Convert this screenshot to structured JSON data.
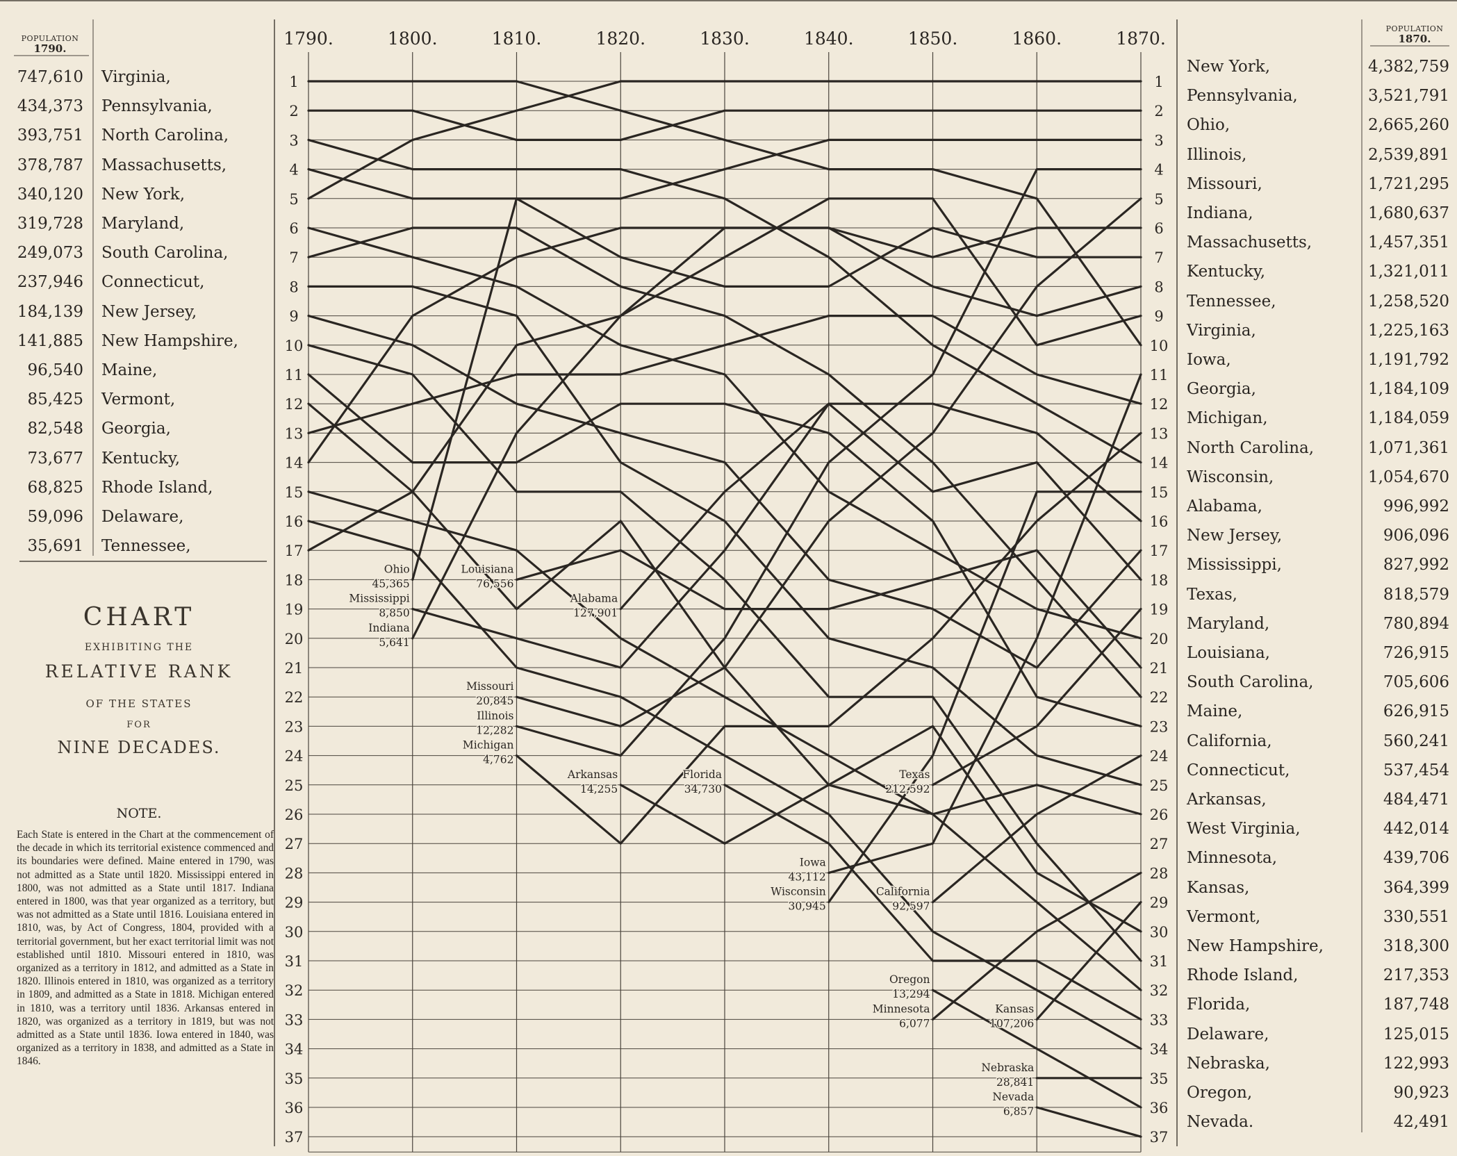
{
  "chart_data": {
    "type": "line",
    "title": "CHART",
    "subtitle_lines": [
      "EXHIBITING THE",
      "RELATIVE RANK",
      "OF THE STATES",
      "FOR",
      "NINE DECADES."
    ],
    "x": [
      "1790.",
      "1800.",
      "1810.",
      "1820.",
      "1830.",
      "1840.",
      "1850.",
      "1860.",
      "1870."
    ],
    "ranks": [
      "1",
      "2",
      "3",
      "4",
      "5",
      "6",
      "7",
      "8",
      "9",
      "10",
      "11",
      "12",
      "13",
      "14",
      "15",
      "16",
      "17",
      "18",
      "19",
      "20",
      "21",
      "22",
      "23",
      "24",
      "25",
      "26",
      "27",
      "28",
      "29",
      "30",
      "31",
      "32",
      "33",
      "34",
      "35",
      "36",
      "37"
    ],
    "ylim": [
      1,
      37
    ],
    "y_inverted": true,
    "grid": true,
    "series": [
      {
        "name": "Virginia",
        "ranks": [
          1,
          1,
          1,
          2,
          3,
          4,
          4,
          5,
          10
        ]
      },
      {
        "name": "Pennsylvania",
        "ranks": [
          2,
          2,
          3,
          3,
          2,
          2,
          2,
          2,
          2
        ]
      },
      {
        "name": "North Carolina",
        "ranks": [
          3,
          4,
          4,
          4,
          5,
          7,
          10,
          12,
          14
        ]
      },
      {
        "name": "Massachusetts",
        "ranks": [
          4,
          5,
          5,
          7,
          8,
          8,
          6,
          7,
          7
        ]
      },
      {
        "name": "New York",
        "ranks": [
          5,
          3,
          2,
          1,
          1,
          1,
          1,
          1,
          1
        ]
      },
      {
        "name": "Maryland",
        "ranks": [
          6,
          7,
          8,
          10,
          11,
          15,
          17,
          19,
          20
        ]
      },
      {
        "name": "South Carolina",
        "ranks": [
          7,
          6,
          6,
          8,
          9,
          11,
          14,
          18,
          22
        ]
      },
      {
        "name": "Connecticut",
        "ranks": [
          8,
          8,
          9,
          14,
          16,
          20,
          21,
          24,
          25
        ]
      },
      {
        "name": "New Jersey",
        "ranks": [
          9,
          10,
          12,
          13,
          14,
          18,
          19,
          21,
          17
        ]
      },
      {
        "name": "New Hampshire",
        "ranks": [
          10,
          11,
          15,
          15,
          18,
          22,
          22,
          27,
          31
        ]
      },
      {
        "name": "Maine",
        "ranks": [
          11,
          14,
          14,
          12,
          12,
          13,
          16,
          22,
          23
        ]
      },
      {
        "name": "Vermont",
        "ranks": [
          12,
          15,
          19,
          16,
          21,
          25,
          23,
          28,
          30
        ]
      },
      {
        "name": "Georgia",
        "ranks": [
          13,
          12,
          11,
          11,
          10,
          9,
          9,
          11,
          12
        ]
      },
      {
        "name": "Kentucky",
        "ranks": [
          14,
          9,
          7,
          6,
          6,
          6,
          8,
          9,
          8
        ]
      },
      {
        "name": "Rhode Island",
        "ranks": [
          15,
          16,
          17,
          20,
          22,
          24,
          26,
          29,
          32
        ]
      },
      {
        "name": "Delaware",
        "ranks": [
          16,
          17,
          21,
          22,
          24,
          26,
          30,
          32,
          34
        ]
      },
      {
        "name": "Tennessee",
        "ranks": [
          17,
          15,
          10,
          9,
          7,
          5,
          5,
          10,
          9
        ]
      },
      {
        "name": "Ohio",
        "ranks": [
          null,
          18,
          5,
          5,
          4,
          3,
          3,
          3,
          3
        ]
      },
      {
        "name": "Mississippi",
        "ranks": [
          null,
          19,
          20,
          21,
          17,
          12,
          15,
          14,
          18
        ]
      },
      {
        "name": "Indiana",
        "ranks": [
          null,
          20,
          13,
          9,
          6,
          6,
          7,
          6,
          6
        ]
      },
      {
        "name": "Louisiana",
        "ranks": [
          null,
          null,
          18,
          17,
          19,
          19,
          18,
          17,
          21
        ]
      },
      {
        "name": "Alabama",
        "ranks": [
          null,
          null,
          null,
          19,
          15,
          12,
          12,
          13,
          16
        ]
      },
      {
        "name": "Missouri",
        "ranks": [
          null,
          null,
          22,
          23,
          21,
          16,
          13,
          8,
          5
        ]
      },
      {
        "name": "Illinois",
        "ranks": [
          null,
          null,
          23,
          24,
          20,
          14,
          11,
          4,
          4
        ]
      },
      {
        "name": "Michigan",
        "ranks": [
          null,
          null,
          24,
          27,
          23,
          23,
          20,
          16,
          13
        ]
      },
      {
        "name": "Arkansas",
        "ranks": [
          null,
          null,
          null,
          25,
          27,
          25,
          26,
          25,
          26
        ]
      },
      {
        "name": "Florida",
        "ranks": [
          null,
          null,
          null,
          null,
          25,
          27,
          31,
          31,
          33
        ]
      },
      {
        "name": "Texas",
        "ranks": [
          null,
          null,
          null,
          null,
          null,
          null,
          25,
          23,
          19
        ]
      },
      {
        "name": "Iowa",
        "ranks": [
          null,
          null,
          null,
          null,
          null,
          28,
          27,
          20,
          11
        ]
      },
      {
        "name": "Wisconsin",
        "ranks": [
          null,
          null,
          null,
          null,
          null,
          29,
          24,
          15,
          15
        ]
      },
      {
        "name": "California",
        "ranks": [
          null,
          null,
          null,
          null,
          null,
          null,
          29,
          26,
          24
        ]
      },
      {
        "name": "Oregon",
        "ranks": [
          null,
          null,
          null,
          null,
          null,
          null,
          32,
          34,
          36
        ]
      },
      {
        "name": "Minnesota",
        "ranks": [
          null,
          null,
          null,
          null,
          null,
          null,
          33,
          30,
          28
        ]
      },
      {
        "name": "Kansas",
        "ranks": [
          null,
          null,
          null,
          null,
          null,
          null,
          null,
          33,
          29
        ]
      },
      {
        "name": "Nebraska",
        "ranks": [
          null,
          null,
          null,
          null,
          null,
          null,
          null,
          35,
          35
        ]
      },
      {
        "name": "Nevada",
        "ranks": [
          null,
          null,
          null,
          null,
          null,
          null,
          null,
          36,
          37
        ]
      },
      {
        "name": "West Virginia",
        "ranks": [
          null,
          null,
          null,
          null,
          null,
          null,
          null,
          null,
          27
        ]
      }
    ],
    "entry_labels": [
      {
        "col": 1,
        "rank": 18,
        "lines": [
          "Ohio",
          "45,365"
        ]
      },
      {
        "col": 1,
        "rank": 19,
        "lines": [
          "Mississippi",
          "8,850"
        ]
      },
      {
        "col": 1,
        "rank": 20,
        "lines": [
          "Indiana",
          "5,641"
        ]
      },
      {
        "col": 2,
        "rank": 18,
        "lines": [
          "Louisiana",
          "76,556"
        ]
      },
      {
        "col": 2,
        "rank": 22,
        "lines": [
          "Missouri",
          "20,845"
        ]
      },
      {
        "col": 2,
        "rank": 23,
        "lines": [
          "Illinois",
          "12,282"
        ]
      },
      {
        "col": 2,
        "rank": 24,
        "lines": [
          "Michigan",
          "4,762"
        ]
      },
      {
        "col": 3,
        "rank": 19,
        "lines": [
          "Alabama",
          "127,901"
        ]
      },
      {
        "col": 3,
        "rank": 25,
        "lines": [
          "Arkansas",
          "14,255"
        ]
      },
      {
        "col": 4,
        "rank": 25,
        "lines": [
          "Florida",
          "34,730"
        ]
      },
      {
        "col": 5,
        "rank": 28,
        "lines": [
          "Iowa",
          "43,112"
        ]
      },
      {
        "col": 5,
        "rank": 29,
        "lines": [
          "Wisconsin",
          "30,945"
        ]
      },
      {
        "col": 6,
        "rank": 25,
        "lines": [
          "Texas",
          "212,592"
        ]
      },
      {
        "col": 6,
        "rank": 29,
        "lines": [
          "California",
          "92,597"
        ]
      },
      {
        "col": 6,
        "rank": 32,
        "lines": [
          "Oregon",
          "13,294"
        ]
      },
      {
        "col": 6,
        "rank": 33,
        "lines": [
          "Minnesota",
          "6,077"
        ]
      },
      {
        "col": 7,
        "rank": 33,
        "lines": [
          "Kansas",
          "107,206"
        ]
      },
      {
        "col": 7,
        "rank": 35,
        "lines": [
          "Nebraska",
          "28,841"
        ]
      },
      {
        "col": 7,
        "rank": 36,
        "lines": [
          "Nevada",
          "6,857"
        ]
      }
    ]
  },
  "left_table": {
    "header_small": "POPULATION",
    "header_year": "1790.",
    "rows": [
      {
        "pop": "747,610",
        "state": "Virginia,"
      },
      {
        "pop": "434,373",
        "state": "Pennsylvania,"
      },
      {
        "pop": "393,751",
        "state": "North Carolina,"
      },
      {
        "pop": "378,787",
        "state": "Massachusetts,"
      },
      {
        "pop": "340,120",
        "state": "New York,"
      },
      {
        "pop": "319,728",
        "state": "Maryland,"
      },
      {
        "pop": "249,073",
        "state": "South Carolina,"
      },
      {
        "pop": "237,946",
        "state": "Connecticut,"
      },
      {
        "pop": "184,139",
        "state": "New Jersey,"
      },
      {
        "pop": "141,885",
        "state": "New Hampshire,"
      },
      {
        "pop": "96,540",
        "state": "Maine,"
      },
      {
        "pop": "85,425",
        "state": "Vermont,"
      },
      {
        "pop": "82,548",
        "state": "Georgia,"
      },
      {
        "pop": "73,677",
        "state": "Kentucky,"
      },
      {
        "pop": "68,825",
        "state": "Rhode Island,"
      },
      {
        "pop": "59,096",
        "state": "Delaware,"
      },
      {
        "pop": "35,691",
        "state": "Tennessee,"
      }
    ]
  },
  "right_table": {
    "header_small": "POPULATION",
    "header_year": "1870.",
    "rows": [
      {
        "rank": "1",
        "state": "New York,",
        "pop": "4,382,759"
      },
      {
        "rank": "2",
        "state": "Pennsylvania,",
        "pop": "3,521,791"
      },
      {
        "rank": "3",
        "state": "Ohio,",
        "pop": "2,665,260"
      },
      {
        "rank": "4",
        "state": "Illinois,",
        "pop": "2,539,891"
      },
      {
        "rank": "5",
        "state": "Missouri,",
        "pop": "1,721,295"
      },
      {
        "rank": "6",
        "state": "Indiana,",
        "pop": "1,680,637"
      },
      {
        "rank": "7",
        "state": "Massachusetts,",
        "pop": "1,457,351"
      },
      {
        "rank": "8",
        "state": "Kentucky,",
        "pop": "1,321,011"
      },
      {
        "rank": "9",
        "state": "Tennessee,",
        "pop": "1,258,520"
      },
      {
        "rank": "10",
        "state": "Virginia,",
        "pop": "1,225,163"
      },
      {
        "rank": "11",
        "state": "Iowa,",
        "pop": "1,191,792"
      },
      {
        "rank": "12",
        "state": "Georgia,",
        "pop": "1,184,109"
      },
      {
        "rank": "13",
        "state": "Michigan,",
        "pop": "1,184,059"
      },
      {
        "rank": "14",
        "state": "North Carolina,",
        "pop": "1,071,361"
      },
      {
        "rank": "15",
        "state": "Wisconsin,",
        "pop": "1,054,670"
      },
      {
        "rank": "16",
        "state": "Alabama,",
        "pop": "996,992"
      },
      {
        "rank": "17",
        "state": "New Jersey,",
        "pop": "906,096"
      },
      {
        "rank": "18",
        "state": "Mississippi,",
        "pop": "827,992"
      },
      {
        "rank": "19",
        "state": "Texas,",
        "pop": "818,579"
      },
      {
        "rank": "20",
        "state": "Maryland,",
        "pop": "780,894"
      },
      {
        "rank": "21",
        "state": "Louisiana,",
        "pop": "726,915"
      },
      {
        "rank": "22",
        "state": "South Carolina,",
        "pop": "705,606"
      },
      {
        "rank": "23",
        "state": "Maine,",
        "pop": "626,915"
      },
      {
        "rank": "24",
        "state": "California,",
        "pop": "560,241"
      },
      {
        "rank": "25",
        "state": "Connecticut,",
        "pop": "537,454"
      },
      {
        "rank": "26",
        "state": "Arkansas,",
        "pop": "484,471"
      },
      {
        "rank": "27",
        "state": "West Virginia,",
        "pop": "442,014"
      },
      {
        "rank": "28",
        "state": "Minnesota,",
        "pop": "439,706"
      },
      {
        "rank": "29",
        "state": "Kansas,",
        "pop": "364,399"
      },
      {
        "rank": "30",
        "state": "Vermont,",
        "pop": "330,551"
      },
      {
        "rank": "31",
        "state": "New Hampshire,",
        "pop": "318,300"
      },
      {
        "rank": "32",
        "state": "Rhode Island,",
        "pop": "217,353"
      },
      {
        "rank": "33",
        "state": "Florida,",
        "pop": "187,748"
      },
      {
        "rank": "34",
        "state": "Delaware,",
        "pop": "125,015"
      },
      {
        "rank": "35",
        "state": "Nebraska,",
        "pop": "122,993"
      },
      {
        "rank": "36",
        "state": "Oregon,",
        "pop": "90,923"
      },
      {
        "rank": "37",
        "state": "Nevada.",
        "pop": "42,491"
      }
    ]
  },
  "note": {
    "title": "NOTE.",
    "text": "Each State is entered in the Chart at the commencement of the decade in which its territorial existence commenced and its boundaries were defined. Maine entered in 1790, was not admitted as a State until 1820. Mississippi entered in 1800, was not admitted as a State until 1817. Indiana entered in 1800, was that year organized as a territory, but was not admitted as a State until 1816. Louisiana entered in 1810, was, by Act of Congress, 1804, provided with a territorial government, but her exact territorial limit was not established until 1810. Missouri entered in 1810, was organized as a territory in 1812, and admitted as a State in 1820. Illinois entered in 1810, was organized as a territory in 1809, and admitted as a State in 1818. Michigan entered in 1810, was a territory until 1836. Arkansas entered in 1820, was organized as a territory in 1819, but was not admitted as a State until 1836. Iowa entered in 1840, was organized as a territory in 1838, and admitted as a State in 1846."
  },
  "colors": {
    "paper": "#f1eadb",
    "ink": "#2a2622",
    "grid": "#4a443c"
  }
}
